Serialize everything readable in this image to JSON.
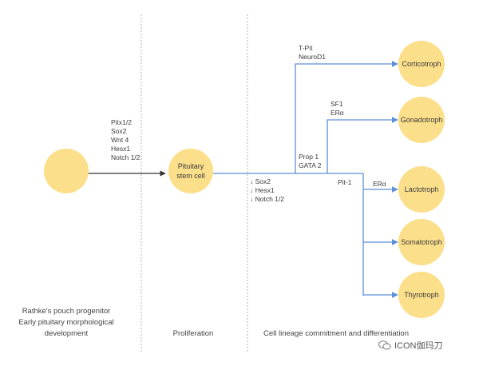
{
  "cells": {
    "pituitary_stem": "Pituitary\nstem cell",
    "corticotroph": "Corticotroph",
    "gonadotroph": "Gonadotroph",
    "lactotroph": "Lactotroph",
    "somatotroph": "Somatotroph",
    "thyrotroph": "Thyrotroph"
  },
  "factors": {
    "progenitor": "Pitx1/2\nSox2\nWnt 4\nHesx1\nNotch 1/2",
    "downregulated": "↓ Sox2\n↓ Hesx1\n↓ Notch 1/2",
    "prop1": "Prop 1\nGATA 2",
    "corticotroph": "T-Pit\nNeuroD1",
    "gonadotroph": "SF1\nERα",
    "pit1": "Pit-1",
    "lactotroph": "ERα"
  },
  "stages": {
    "progenitor": "Rathke's pouch progenitor\nEarly pituitary morphological\ndevelopment",
    "proliferation": "Proliferation",
    "commitment": "Cell lineage commitment and differentiation"
  },
  "watermark": "ICON伽玛刀",
  "colors": {
    "circle": "#fbdf8a",
    "line": "#5b8fd6",
    "arrow_dark": "#333333",
    "divider": "#b0b0b0"
  }
}
